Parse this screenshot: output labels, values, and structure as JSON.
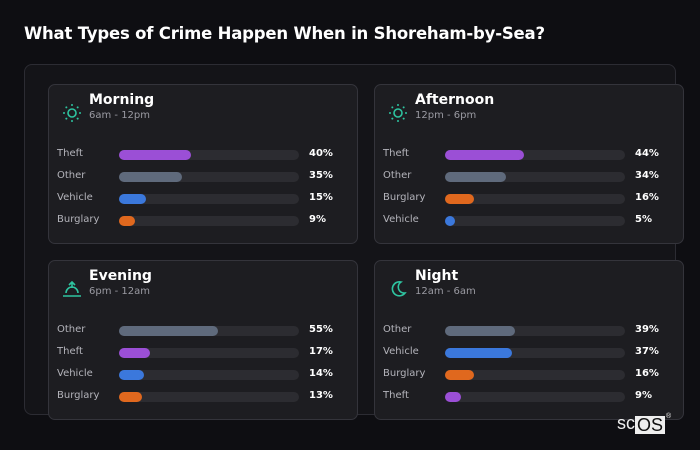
{
  "chart_data": {
    "type": "bar",
    "title": "What Types of Crime Happen When in Shoreham-by-Sea?",
    "xlim": [
      0,
      100
    ],
    "colors": {
      "Theft": "#9b4fd6",
      "Other": "#5f6a7c",
      "Vehicle": "#3b78dc",
      "Burglary": "#e0681e"
    },
    "panels": [
      {
        "name": "Morning",
        "time": "6am - 12pm",
        "icon": "sun-icon",
        "items": [
          {
            "label": "Theft",
            "value": 40,
            "text": "40%"
          },
          {
            "label": "Other",
            "value": 35,
            "text": "35%"
          },
          {
            "label": "Vehicle",
            "value": 15,
            "text": "15%"
          },
          {
            "label": "Burglary",
            "value": 9,
            "text": "9%"
          }
        ]
      },
      {
        "name": "Afternoon",
        "time": "12pm - 6pm",
        "icon": "sun-icon",
        "items": [
          {
            "label": "Theft",
            "value": 44,
            "text": "44%"
          },
          {
            "label": "Other",
            "value": 34,
            "text": "34%"
          },
          {
            "label": "Burglary",
            "value": 16,
            "text": "16%"
          },
          {
            "label": "Vehicle",
            "value": 5,
            "text": "5%"
          }
        ]
      },
      {
        "name": "Evening",
        "time": "6pm - 12am",
        "icon": "sunset-icon",
        "items": [
          {
            "label": "Other",
            "value": 55,
            "text": "55%"
          },
          {
            "label": "Theft",
            "value": 17,
            "text": "17%"
          },
          {
            "label": "Vehicle",
            "value": 14,
            "text": "14%"
          },
          {
            "label": "Burglary",
            "value": 13,
            "text": "13%"
          }
        ]
      },
      {
        "name": "Night",
        "time": "12am - 6am",
        "icon": "moon-icon",
        "items": [
          {
            "label": "Other",
            "value": 39,
            "text": "39%"
          },
          {
            "label": "Vehicle",
            "value": 37,
            "text": "37%"
          },
          {
            "label": "Burglary",
            "value": 16,
            "text": "16%"
          },
          {
            "label": "Theft",
            "value": 9,
            "text": "9%"
          }
        ]
      }
    ]
  },
  "logo": {
    "text": "scOS",
    "mark": "®"
  },
  "accent": "#2ec4a0"
}
